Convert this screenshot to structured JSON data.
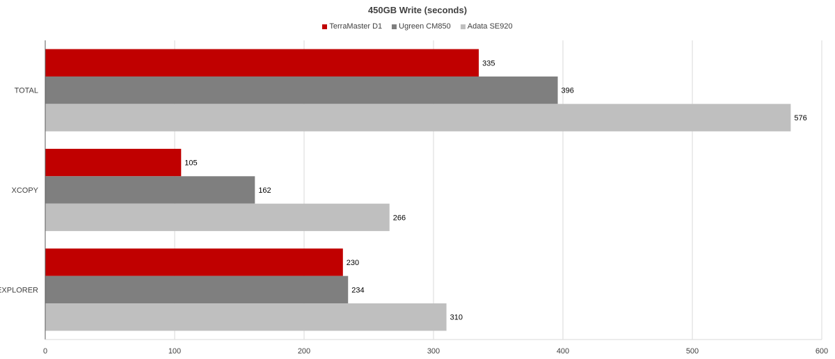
{
  "chart_data": {
    "type": "bar",
    "orientation": "horizontal",
    "title": "450GB Write (seconds)",
    "categories": [
      "TOTAL",
      "XCOPY",
      "EXPLORER"
    ],
    "series": [
      {
        "name": "TerraMaster D1",
        "color": "#c00000",
        "values": [
          335,
          105,
          230
        ]
      },
      {
        "name": "Ugreen CM850",
        "color": "#7f7f7f",
        "values": [
          396,
          162,
          234
        ]
      },
      {
        "name": "Adata SE920",
        "color": "#bfbfbf",
        "values": [
          576,
          266,
          310
        ]
      }
    ],
    "xlim": [
      0,
      600
    ],
    "xticks": [
      "0",
      "100",
      "200",
      "300",
      "400",
      "500",
      "600"
    ],
    "grid": true,
    "legend_position": "top"
  }
}
